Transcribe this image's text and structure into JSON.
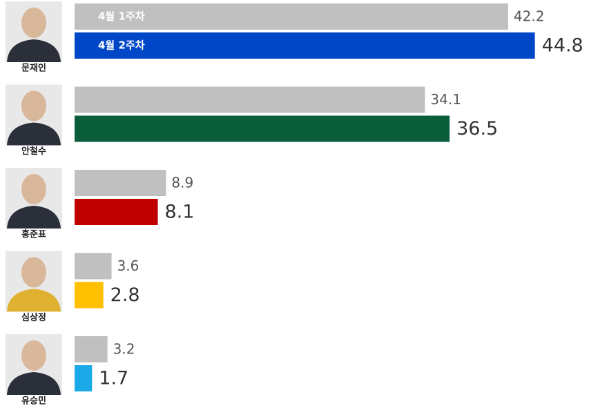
{
  "chart_data": {
    "type": "bar",
    "categories": [
      "문재인",
      "안철수",
      "홍준표",
      "심상정",
      "유승민"
    ],
    "series": [
      {
        "name": "4월 1주차",
        "color": "#c0c0c0",
        "values": [
          42.2,
          34.1,
          8.9,
          3.6,
          3.2
        ]
      },
      {
        "name": "4월 2주차",
        "colors": [
          "#0047c8",
          "#0b5e3b",
          "#c00000",
          "#ffc000",
          "#1ba9e8"
        ],
        "values": [
          44.8,
          36.5,
          8.1,
          2.8,
          1.7
        ]
      }
    ],
    "xlim": [
      0,
      50
    ]
  }
}
